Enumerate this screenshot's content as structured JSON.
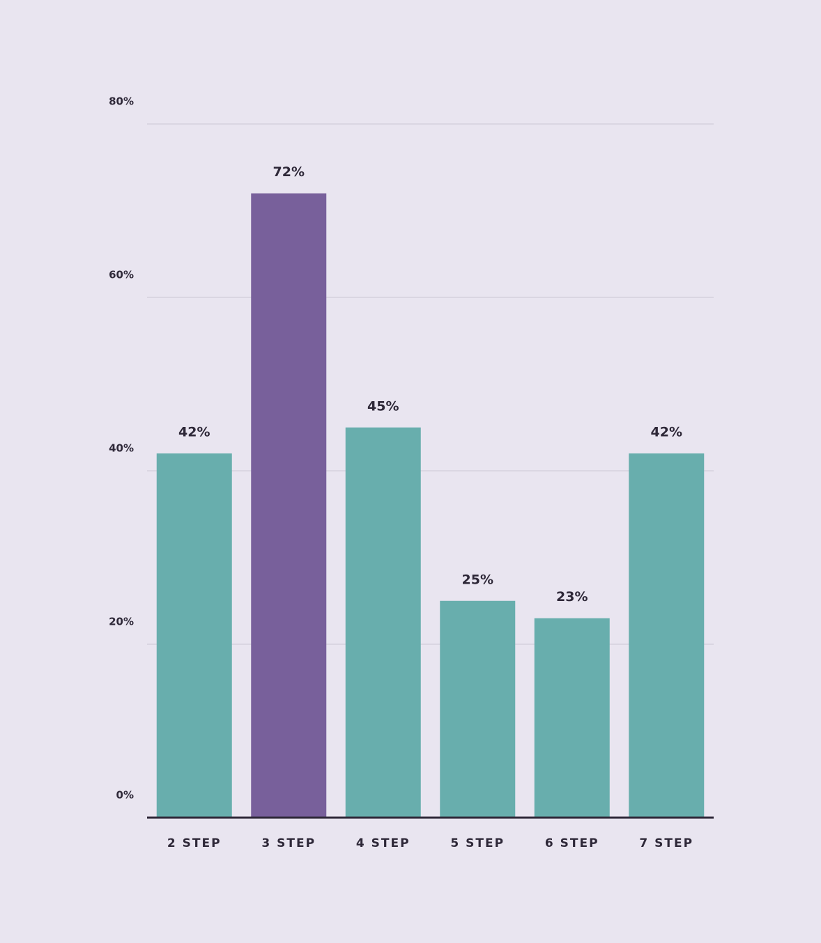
{
  "chart_data": {
    "type": "bar",
    "categories": [
      "2 STEP",
      "3 STEP",
      "4 STEP",
      "5 STEP",
      "6 STEP",
      "7 STEP"
    ],
    "values": [
      42,
      72,
      45,
      25,
      23,
      42
    ],
    "value_labels": [
      "42%",
      "72%",
      "45%",
      "25%",
      "23%",
      "42%"
    ],
    "colors": [
      "#68aead",
      "#78609b",
      "#68aead",
      "#68aead",
      "#68aead",
      "#68aead"
    ],
    "ylim": [
      0,
      80
    ],
    "yticks": [
      {
        "value": 0,
        "label": "0%"
      },
      {
        "value": 20,
        "label": "20%"
      },
      {
        "value": 40,
        "label": "40%"
      },
      {
        "value": 60,
        "label": "60%"
      },
      {
        "value": 80,
        "label": "80%"
      }
    ],
    "grid": true
  }
}
